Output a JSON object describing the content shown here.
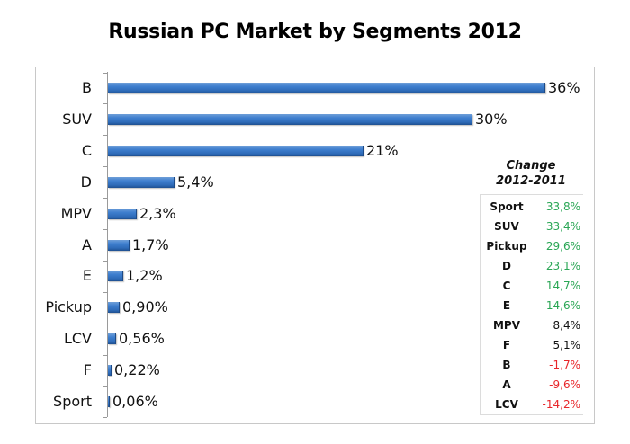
{
  "chart_data": {
    "type": "bar",
    "orientation": "horizontal",
    "title": "Russian PC Market by Segments 2012",
    "xlabel": "",
    "ylabel": "",
    "categories": [
      "B",
      "SUV",
      "C",
      "D",
      "MPV",
      "A",
      "E",
      "Pickup",
      "LCV",
      "F",
      "Sport"
    ],
    "values": [
      36,
      30,
      21,
      5.4,
      2.3,
      1.7,
      1.2,
      0.9,
      0.56,
      0.22,
      0.06
    ],
    "value_labels": [
      "36%",
      "30%",
      "21%",
      "5,4%",
      "2,3%",
      "1,7%",
      "1,2%",
      "0,90%",
      "0,56%",
      "0,22%",
      "0,06%"
    ],
    "unit": "%",
    "xlim": [
      0,
      36
    ],
    "grid": false,
    "legend": null,
    "bar_color": "#3a76c4",
    "annotation_table": {
      "title_line1": "Change",
      "title_line2": "2012-2011",
      "rows": [
        {
          "segment": "Sport",
          "change": "33,8%",
          "value": 33.8,
          "color": "#2aa655"
        },
        {
          "segment": "SUV",
          "change": "33,4%",
          "value": 33.4,
          "color": "#2aa655"
        },
        {
          "segment": "Pickup",
          "change": "29,6%",
          "value": 29.6,
          "color": "#2aa655"
        },
        {
          "segment": "D",
          "change": "23,1%",
          "value": 23.1,
          "color": "#2aa655"
        },
        {
          "segment": "C",
          "change": "14,7%",
          "value": 14.7,
          "color": "#2aa655"
        },
        {
          "segment": "E",
          "change": "14,6%",
          "value": 14.6,
          "color": "#2aa655"
        },
        {
          "segment": "MPV",
          "change": "8,4%",
          "value": 8.4,
          "color": "#111111"
        },
        {
          "segment": "F",
          "change": "5,1%",
          "value": 5.1,
          "color": "#111111"
        },
        {
          "segment": "B",
          "change": "-1,7%",
          "value": -1.7,
          "color": "#e8262a"
        },
        {
          "segment": "A",
          "change": "-9,6%",
          "value": -9.6,
          "color": "#e8262a"
        },
        {
          "segment": "LCV",
          "change": "-14,2%",
          "value": -14.2,
          "color": "#e8262a"
        }
      ]
    }
  },
  "colors": {
    "positive": "#2aa655",
    "neutral": "#111111",
    "negative": "#e8262a",
    "bar": "#3a76c4"
  }
}
